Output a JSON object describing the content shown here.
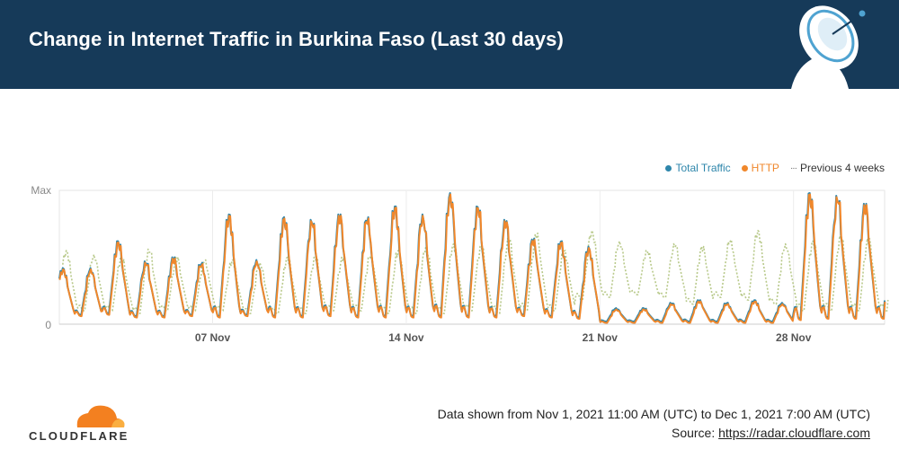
{
  "header": {
    "title": "Change in Internet Traffic in Burkina Faso (Last 30 days)",
    "icon": "satellite-dish-icon"
  },
  "legend": {
    "total": "Total Traffic",
    "http": "HTTP",
    "previous": "Previous 4 weeks"
  },
  "colors": {
    "total": "#2e86ab",
    "http": "#f0872b",
    "previous": "#b8c98a",
    "header": "#163a59"
  },
  "chart_data": {
    "type": "line",
    "x_start": "Nov 1, 2021 11:00",
    "x_end": "Dec 1, 2021 07:00",
    "xticks": [
      "07 Nov",
      "14 Nov",
      "21 Nov",
      "28 Nov"
    ],
    "yticks": [
      "0",
      "Max"
    ],
    "ylim": [
      0,
      1
    ],
    "series": [
      {
        "name": "Total Traffic",
        "daily_peaks": [
          0.42,
          0.42,
          0.62,
          0.47,
          0.5,
          0.46,
          0.82,
          0.48,
          0.8,
          0.78,
          0.82,
          0.8,
          0.88,
          0.82,
          0.98,
          0.88,
          0.78,
          0.64,
          0.62,
          0.58,
          0.12,
          0.12,
          0.16,
          0.18,
          0.16,
          0.18,
          0.16,
          0.98,
          0.96,
          0.9
        ],
        "daily_lows": [
          0.08,
          0.07,
          0.08,
          0.06,
          0.06,
          0.07,
          0.06,
          0.07,
          0.06,
          0.06,
          0.07,
          0.06,
          0.06,
          0.06,
          0.06,
          0.06,
          0.06,
          0.07,
          0.06,
          0.05,
          0.02,
          0.02,
          0.02,
          0.02,
          0.02,
          0.02,
          0.02,
          0.04,
          0.05,
          0.05
        ]
      },
      {
        "name": "HTTP",
        "daily_peaks": [
          0.41,
          0.41,
          0.61,
          0.46,
          0.49,
          0.45,
          0.81,
          0.47,
          0.79,
          0.77,
          0.81,
          0.79,
          0.87,
          0.81,
          0.97,
          0.87,
          0.77,
          0.63,
          0.61,
          0.57,
          0.11,
          0.11,
          0.15,
          0.17,
          0.15,
          0.17,
          0.15,
          0.97,
          0.95,
          0.89
        ],
        "daily_lows": [
          0.07,
          0.06,
          0.07,
          0.05,
          0.05,
          0.06,
          0.05,
          0.06,
          0.05,
          0.05,
          0.06,
          0.05,
          0.05,
          0.05,
          0.05,
          0.05,
          0.05,
          0.06,
          0.05,
          0.04,
          0.01,
          0.01,
          0.01,
          0.01,
          0.01,
          0.01,
          0.01,
          0.03,
          0.04,
          0.04
        ]
      },
      {
        "name": "Previous 4 weeks",
        "daily_peaks": [
          0.55,
          0.52,
          0.5,
          0.56,
          0.5,
          0.48,
          0.48,
          0.46,
          0.5,
          0.5,
          0.5,
          0.52,
          0.55,
          0.58,
          0.6,
          0.58,
          0.64,
          0.68,
          0.55,
          0.7,
          0.62,
          0.55,
          0.6,
          0.58,
          0.63,
          0.7,
          0.6,
          0.62,
          0.66,
          0.64
        ],
        "daily_lows": [
          0.1,
          0.1,
          0.1,
          0.08,
          0.1,
          0.1,
          0.1,
          0.08,
          0.08,
          0.08,
          0.1,
          0.1,
          0.08,
          0.08,
          0.08,
          0.1,
          0.08,
          0.1,
          0.1,
          0.18,
          0.2,
          0.22,
          0.2,
          0.15,
          0.2,
          0.18,
          0.15,
          0.1,
          0.1,
          0.1
        ]
      }
    ]
  },
  "footer": {
    "range": "Data shown from Nov 1, 2021 11:00 AM (UTC) to Dec 1, 2021 7:00 AM (UTC)",
    "source_label": "Source: ",
    "source_link": "https://radar.cloudflare.com",
    "brand": "CLOUDFLARE"
  }
}
